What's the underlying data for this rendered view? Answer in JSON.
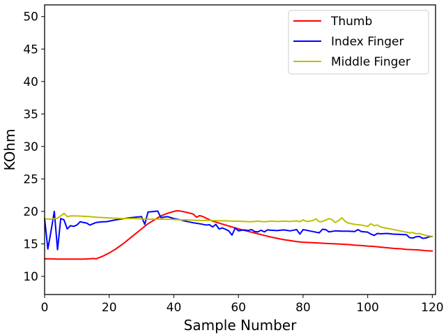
{
  "chart_data": {
    "type": "line",
    "title": "",
    "xlabel": "Sample Number",
    "ylabel": "KOhm",
    "xlim": [
      0,
      121
    ],
    "ylim": [
      7.2,
      51.8
    ],
    "xticks": [
      0,
      20,
      40,
      60,
      80,
      100,
      120
    ],
    "yticks": [
      10,
      15,
      20,
      25,
      30,
      35,
      40,
      45,
      50
    ],
    "grid": false,
    "legend_position": "top-right",
    "series": [
      {
        "name": "Thumb",
        "color": "#ff0000",
        "x": [
          0,
          2,
          4,
          6,
          8,
          10,
          12,
          14,
          15,
          16,
          18,
          20,
          22,
          24,
          26,
          28,
          30,
          32,
          34,
          36,
          38,
          40,
          41,
          42,
          44,
          46,
          47,
          48,
          49,
          50,
          52,
          54,
          56,
          58,
          60,
          62,
          64,
          66,
          68,
          70,
          72,
          74,
          76,
          78,
          80,
          82,
          84,
          86,
          88,
          90,
          92,
          94,
          96,
          98,
          100,
          102,
          104,
          106,
          108,
          110,
          112,
          114,
          116,
          118,
          120
        ],
        "y": [
          12.7,
          12.7,
          12.65,
          12.65,
          12.65,
          12.65,
          12.65,
          12.7,
          12.75,
          12.7,
          13.1,
          13.6,
          14.2,
          14.9,
          15.7,
          16.5,
          17.3,
          18.1,
          18.7,
          19.3,
          19.7,
          20.0,
          20.1,
          20.05,
          19.85,
          19.6,
          19.1,
          19.35,
          19.2,
          18.95,
          18.5,
          18.2,
          17.9,
          17.6,
          17.3,
          17.05,
          16.8,
          16.55,
          16.3,
          16.05,
          15.85,
          15.65,
          15.5,
          15.35,
          15.25,
          15.2,
          15.15,
          15.1,
          15.05,
          15.0,
          14.95,
          14.9,
          14.8,
          14.75,
          14.65,
          14.6,
          14.5,
          14.4,
          14.3,
          14.25,
          14.15,
          14.1,
          14.05,
          13.95,
          13.9
        ]
      },
      {
        "name": "Index Finger",
        "color": "#0000ff",
        "x": [
          0,
          1,
          2,
          3,
          4,
          5,
          6,
          7,
          8,
          9,
          10,
          11,
          12,
          13,
          14,
          15,
          16,
          17,
          18,
          19,
          20,
          22,
          24,
          26,
          28,
          30,
          31,
          32,
          34,
          35,
          36,
          38,
          40,
          42,
          44,
          46,
          48,
          50,
          51,
          52,
          53,
          54,
          55,
          56,
          57,
          58,
          59,
          60,
          61,
          62,
          63,
          64,
          65,
          66,
          67,
          68,
          69,
          70,
          72,
          74,
          76,
          78,
          79,
          80,
          82,
          84,
          85,
          86,
          87,
          88,
          90,
          92,
          94,
          96,
          97,
          98,
          100,
          101,
          102,
          103,
          104,
          106,
          108,
          110,
          112,
          113,
          114,
          115,
          116,
          117,
          118,
          119,
          120
        ],
        "y": [
          18.9,
          14.2,
          17.0,
          20.0,
          14.1,
          18.9,
          18.7,
          17.3,
          17.8,
          17.7,
          17.9,
          18.4,
          18.3,
          18.2,
          17.9,
          18.1,
          18.3,
          18.35,
          18.4,
          18.4,
          18.5,
          18.7,
          18.85,
          19.0,
          19.1,
          19.2,
          18.0,
          19.9,
          20.0,
          20.05,
          19.05,
          19.2,
          18.9,
          18.7,
          18.45,
          18.25,
          18.1,
          17.9,
          17.95,
          17.6,
          18.0,
          17.3,
          17.45,
          17.25,
          17.0,
          16.35,
          17.45,
          17.0,
          17.1,
          17.15,
          17.05,
          17.2,
          16.9,
          16.85,
          17.1,
          16.85,
          17.15,
          17.1,
          17.05,
          17.15,
          17.0,
          17.2,
          16.5,
          17.2,
          17.0,
          16.8,
          16.7,
          17.25,
          17.2,
          16.85,
          17.0,
          16.95,
          16.95,
          16.9,
          17.2,
          16.9,
          16.8,
          16.5,
          16.3,
          16.6,
          16.55,
          16.6,
          16.5,
          16.45,
          16.4,
          15.95,
          15.9,
          16.1,
          16.15,
          15.85,
          15.9,
          16.1,
          16.15
        ]
      },
      {
        "name": "Middle Finger",
        "color": "#bfbf00",
        "x": [
          0,
          2,
          4,
          6,
          7,
          8,
          10,
          12,
          14,
          16,
          18,
          20,
          22,
          24,
          26,
          28,
          30,
          32,
          34,
          36,
          38,
          40,
          42,
          44,
          46,
          48,
          50,
          52,
          54,
          56,
          58,
          60,
          62,
          64,
          66,
          68,
          70,
          72,
          74,
          76,
          78,
          79,
          80,
          81,
          82,
          83,
          84,
          85,
          86,
          87,
          88,
          89,
          90,
          91,
          92,
          93,
          94,
          96,
          98,
          100,
          101,
          102,
          103,
          104,
          106,
          108,
          110,
          112,
          113,
          114,
          115,
          116,
          118,
          120
        ],
        "y": [
          18.85,
          18.8,
          18.95,
          19.7,
          19.2,
          19.3,
          19.3,
          19.25,
          19.2,
          19.1,
          19.05,
          19.0,
          18.95,
          18.9,
          18.9,
          18.9,
          18.85,
          18.8,
          18.8,
          18.8,
          18.8,
          18.75,
          18.7,
          18.7,
          18.65,
          18.6,
          18.6,
          18.6,
          18.55,
          18.55,
          18.5,
          18.5,
          18.45,
          18.4,
          18.5,
          18.4,
          18.5,
          18.45,
          18.5,
          18.45,
          18.55,
          18.4,
          18.7,
          18.45,
          18.5,
          18.6,
          18.85,
          18.4,
          18.45,
          18.65,
          18.9,
          18.7,
          18.3,
          18.6,
          19.0,
          18.5,
          18.2,
          18.0,
          17.9,
          17.7,
          18.1,
          17.8,
          17.9,
          17.6,
          17.4,
          17.2,
          17.0,
          16.8,
          16.7,
          16.75,
          16.55,
          16.6,
          16.3,
          16.15
        ]
      }
    ]
  }
}
